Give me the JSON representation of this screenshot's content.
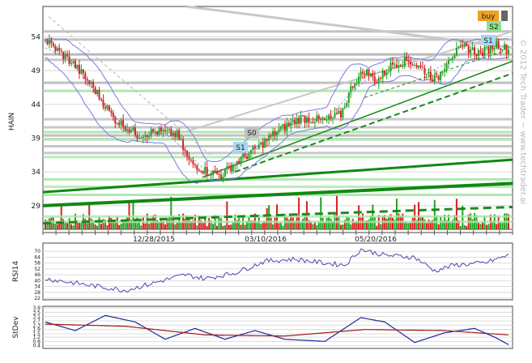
{
  "chart_data": [
    {
      "type": "line",
      "panel": "price",
      "ylabel": "HAIN",
      "y_ticks": [
        29,
        34,
        39,
        44,
        49,
        54
      ],
      "ylim": [
        25.5,
        58.5
      ],
      "x_tick_labels": [
        "12/28/2015",
        "03/10/2016",
        "05/20/2016"
      ],
      "grid": true,
      "watermark": "© 2012 Tech Trader ~ www.techtrader.ai",
      "annotations": [
        "buy",
        "S2",
        "S1",
        "S0",
        "S1"
      ],
      "close_keypoints": [
        {
          "x": 0,
          "close": 53.5
        },
        {
          "x": 6,
          "close": 52.0
        },
        {
          "x": 14,
          "close": 50.0
        },
        {
          "x": 24,
          "close": 46.5
        },
        {
          "x": 34,
          "close": 42.0
        },
        {
          "x": 46,
          "close": 39.5
        },
        {
          "x": 56,
          "close": 40.0
        },
        {
          "x": 66,
          "close": 39.5
        },
        {
          "x": 72,
          "close": 35.5
        },
        {
          "x": 80,
          "close": 34.2
        },
        {
          "x": 88,
          "close": 33.5
        },
        {
          "x": 96,
          "close": 35.5
        },
        {
          "x": 106,
          "close": 37.5
        },
        {
          "x": 116,
          "close": 40.0
        },
        {
          "x": 128,
          "close": 42.0
        },
        {
          "x": 140,
          "close": 41.5
        },
        {
          "x": 148,
          "close": 42.5
        },
        {
          "x": 154,
          "close": 47.0
        },
        {
          "x": 160,
          "close": 49.0
        },
        {
          "x": 166,
          "close": 47.5
        },
        {
          "x": 174,
          "close": 50.0
        },
        {
          "x": 182,
          "close": 50.5
        },
        {
          "x": 190,
          "close": 49.0
        },
        {
          "x": 196,
          "close": 47.5
        },
        {
          "x": 202,
          "close": 51.0
        },
        {
          "x": 210,
          "close": 52.5
        },
        {
          "x": 218,
          "close": 51.5
        },
        {
          "x": 226,
          "close": 53.0
        },
        {
          "x": 232,
          "close": 52.0
        }
      ],
      "n_bars": 233,
      "colors": {
        "up": "#22a022",
        "down": "#d42020",
        "band": "#7a7ae0",
        "support": "#1a8a1a"
      }
    },
    {
      "type": "line",
      "panel": "rsi",
      "ylabel": "RSI14",
      "y_ticks": [
        22,
        28,
        34,
        40,
        46,
        52,
        58,
        64,
        70
      ],
      "ylim": [
        22,
        76
      ],
      "x_tick_labels": [],
      "grid": true,
      "keypoints": [
        {
          "x": 0,
          "y": 42
        },
        {
          "x": 20,
          "y": 36
        },
        {
          "x": 40,
          "y": 30
        },
        {
          "x": 55,
          "y": 38
        },
        {
          "x": 70,
          "y": 46
        },
        {
          "x": 80,
          "y": 42
        },
        {
          "x": 95,
          "y": 48
        },
        {
          "x": 110,
          "y": 60
        },
        {
          "x": 125,
          "y": 62
        },
        {
          "x": 140,
          "y": 58
        },
        {
          "x": 150,
          "y": 56
        },
        {
          "x": 158,
          "y": 72
        },
        {
          "x": 170,
          "y": 66
        },
        {
          "x": 185,
          "y": 64
        },
        {
          "x": 195,
          "y": 50
        },
        {
          "x": 205,
          "y": 56
        },
        {
          "x": 220,
          "y": 58
        },
        {
          "x": 232,
          "y": 66
        }
      ]
    },
    {
      "type": "line",
      "panel": "stdev",
      "ylabel": "StDev",
      "y_ticks": [
        0.4,
        0.8,
        1.2,
        1.5,
        1.9,
        2.3,
        2.7,
        3.1,
        3.5,
        3.9
      ],
      "ylim": [
        0.3,
        3.9
      ],
      "x_tick_labels": [],
      "grid": true,
      "series": [
        {
          "keypoints": [
            {
              "x": 0,
              "y": 2.6
            },
            {
              "x": 15,
              "y": 1.8
            },
            {
              "x": 30,
              "y": 3.2
            },
            {
              "x": 45,
              "y": 2.6
            },
            {
              "x": 60,
              "y": 1.0
            },
            {
              "x": 75,
              "y": 2.0
            },
            {
              "x": 90,
              "y": 1.0
            },
            {
              "x": 105,
              "y": 1.8
            },
            {
              "x": 120,
              "y": 1.0
            },
            {
              "x": 140,
              "y": 0.8
            },
            {
              "x": 158,
              "y": 3.0
            },
            {
              "x": 170,
              "y": 2.6
            },
            {
              "x": 185,
              "y": 0.7
            },
            {
              "x": 200,
              "y": 1.6
            },
            {
              "x": 215,
              "y": 2.0
            },
            {
              "x": 225,
              "y": 1.2
            },
            {
              "x": 232,
              "y": 0.5
            }
          ]
        },
        {
          "keypoints": [
            {
              "x": 0,
              "y": 2.4
            },
            {
              "x": 40,
              "y": 2.2
            },
            {
              "x": 80,
              "y": 1.4
            },
            {
              "x": 120,
              "y": 1.3
            },
            {
              "x": 160,
              "y": 1.9
            },
            {
              "x": 200,
              "y": 1.8
            },
            {
              "x": 232,
              "y": 1.4
            }
          ]
        }
      ]
    }
  ]
}
